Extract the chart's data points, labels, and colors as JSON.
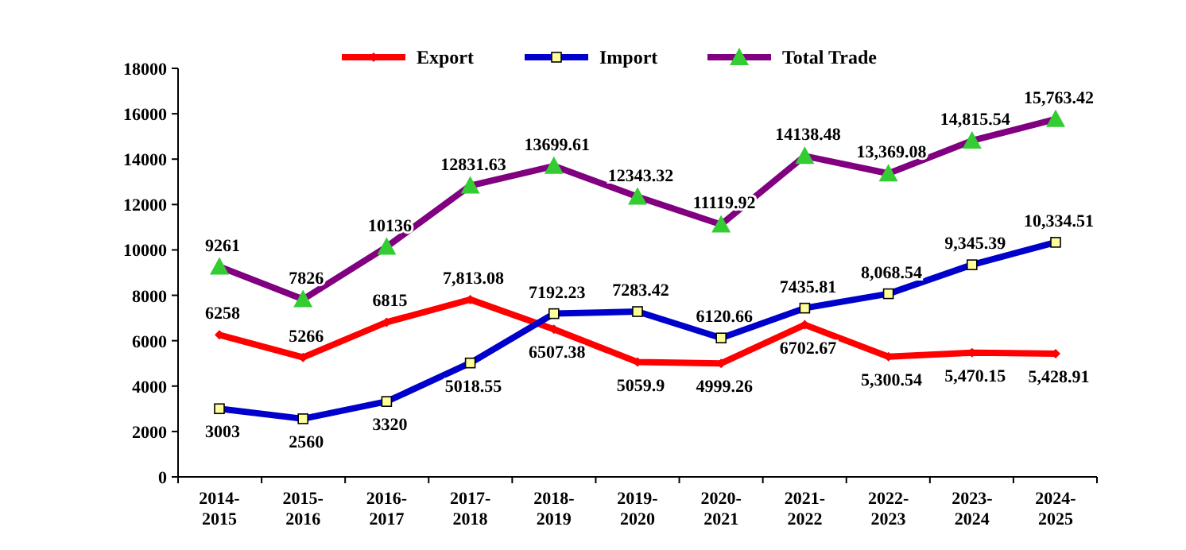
{
  "chart_data": {
    "type": "line",
    "categories": [
      "2014-\n2015",
      "2015-\n2016",
      "2016-\n2017",
      "2017-\n2018",
      "2018-\n2019",
      "2019-\n2020",
      "2020-\n2021",
      "2021-\n2022",
      "2022-\n2023",
      "2023-\n2024",
      "2024-\n2025"
    ],
    "ylim": [
      0,
      18000
    ],
    "yticks": [
      0,
      2000,
      4000,
      6000,
      8000,
      10000,
      12000,
      14000,
      16000,
      18000
    ],
    "grid": false,
    "legend": "top",
    "series": [
      {
        "name": "Export",
        "color": "#ff0000",
        "marker": "diamond",
        "values": [
          6258,
          5266,
          6815,
          7813.08,
          6507.38,
          5059.9,
          4999.26,
          6702.67,
          5300.54,
          5470.15,
          5428.91
        ],
        "value_labels": [
          "6258",
          "5266",
          "6815",
          "7,813.08",
          "6507.38",
          "5059.9",
          "4999.26",
          "6702.67",
          "5,300.54",
          "5,470.15",
          "5,428.91"
        ]
      },
      {
        "name": "Import",
        "color": "#0000cc",
        "marker": "square",
        "values": [
          3003,
          2560,
          3320,
          5018.55,
          7192.23,
          7283.42,
          6120.66,
          7435.81,
          8068.54,
          9345.39,
          10334.51
        ],
        "value_labels": [
          "3003",
          "2560",
          "3320",
          "5018.55",
          "7192.23",
          "7283.42",
          "6120.66",
          "7435.81",
          "8,068.54",
          "9,345.39",
          "10,334.51"
        ]
      },
      {
        "name": "Total Trade",
        "color": "#800080",
        "marker": "triangle",
        "values": [
          9261,
          7826,
          10136,
          12831.63,
          13699.61,
          12343.32,
          11119.92,
          14138.48,
          13369.08,
          14815.54,
          15763.42
        ],
        "value_labels": [
          "9261",
          "7826",
          "10136",
          "12831.63",
          "13699.61",
          "12343.32",
          "11119.92",
          "14138.48",
          "13,369.08",
          "14,815.54",
          "15,763.42"
        ]
      }
    ]
  }
}
